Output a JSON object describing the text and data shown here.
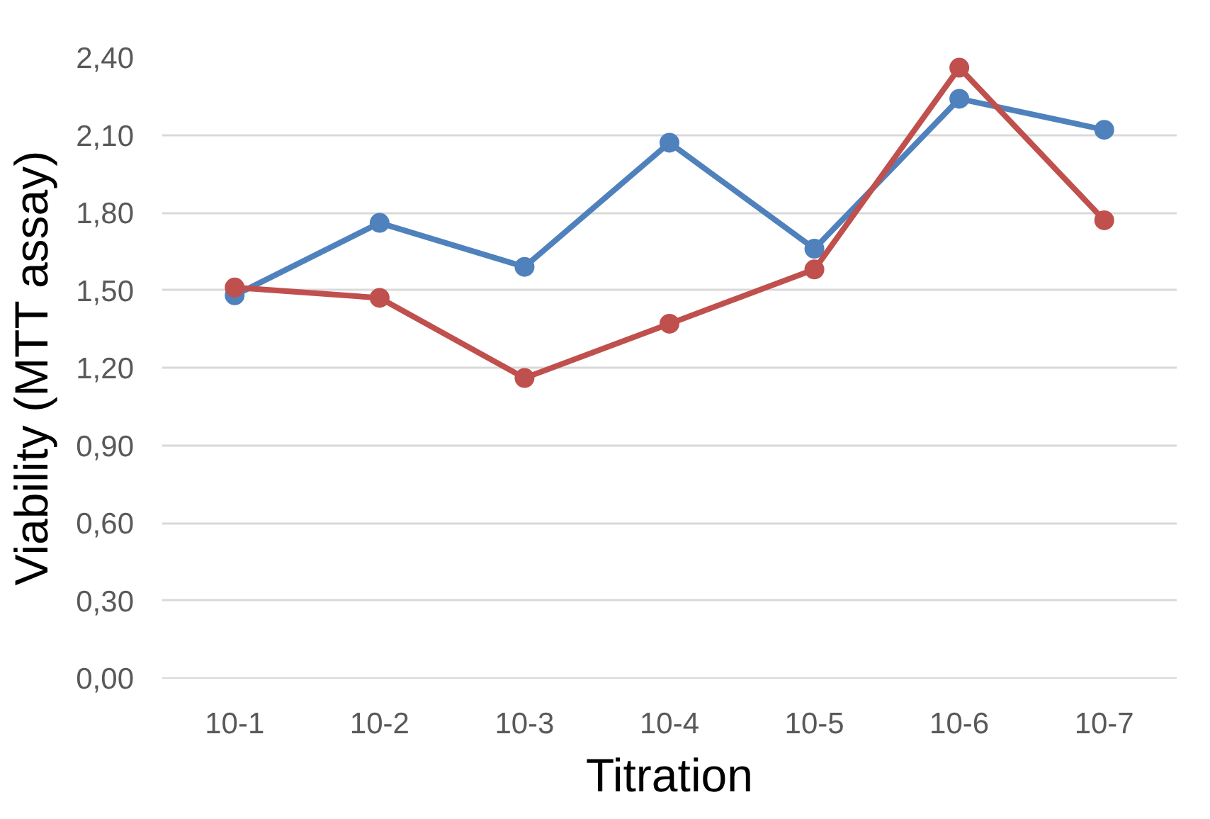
{
  "chart_data": {
    "type": "line",
    "xlabel": "Titration",
    "ylabel": "Viability (MTT assay)",
    "categories": [
      "10-1",
      "10-2",
      "10-3",
      "10-4",
      "10-5",
      "10-6",
      "10-7"
    ],
    "series": [
      {
        "color": "#4f81bd",
        "values": [
          1.48,
          1.76,
          1.59,
          2.07,
          1.66,
          2.24,
          2.12
        ]
      },
      {
        "color": "#c0504d",
        "values": [
          1.51,
          1.47,
          1.16,
          1.37,
          1.58,
          2.36,
          1.77
        ]
      }
    ],
    "ylim": [
      0,
      2.4
    ],
    "yticks": [
      {
        "value": 0,
        "label": "0,00"
      },
      {
        "value": 0.3,
        "label": "0,30"
      },
      {
        "value": 0.6,
        "label": "0,60"
      },
      {
        "value": 0.9,
        "label": "0,90"
      },
      {
        "value": 1.2,
        "label": "1,20"
      },
      {
        "value": 1.5,
        "label": "1,50"
      },
      {
        "value": 1.8,
        "label": "1,80"
      },
      {
        "value": 2.1,
        "label": "2,10"
      },
      {
        "value": 2.4,
        "label": "2,40"
      }
    ],
    "grid": "y",
    "marker": "circle",
    "line_style": "solid"
  }
}
